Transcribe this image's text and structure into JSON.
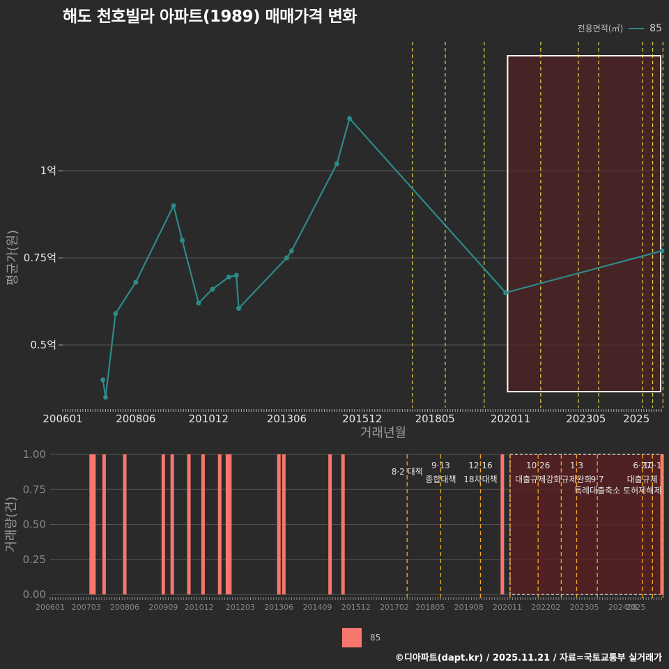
{
  "title": "해도 천호빌라 아파트(1989) 매매가격 변화",
  "legend": {
    "title": "전용면적(㎡)",
    "series_name": "85",
    "line_color": "#2e8a8a",
    "bar_color": "#f8766d"
  },
  "footer": "©디아파트(dapt.kr) / 2025.11.21 / 자료=국토교통부 실거래가",
  "chart_data": [
    {
      "type": "line",
      "title": "해도 천호빌라 아파트(1989) 매매가격 변화",
      "xlabel": "거래년월",
      "ylabel": "평균가(원)",
      "x_range": [
        2006.0,
        2025.85
      ],
      "ylim": [
        0.32,
        1.38
      ],
      "y_ticks": [
        0.5,
        0.75,
        1.0
      ],
      "y_tick_labels": [
        "0.5억",
        "0.75억",
        "1억"
      ],
      "x_ticks": [
        2006.0,
        2008.42,
        2010.83,
        2013.42,
        2015.92,
        2018.33,
        2020.83,
        2023.33,
        2025.0
      ],
      "x_tick_labels": [
        "200601",
        "200806",
        "201012",
        "201306",
        "201512",
        "201805",
        "202011",
        "202305",
        "2025"
      ],
      "series": [
        {
          "name": "85",
          "x": [
            2007.33,
            2007.42,
            2007.75,
            2008.42,
            2009.67,
            2009.96,
            2010.5,
            2010.96,
            2011.5,
            2011.75,
            2011.83,
            2013.42,
            2013.58,
            2015.08,
            2015.5,
            2020.67,
            2025.85
          ],
          "y": [
            0.4,
            0.35,
            0.59,
            0.68,
            0.9,
            0.8,
            0.62,
            0.66,
            0.695,
            0.7,
            0.605,
            0.75,
            0.77,
            1.02,
            1.15,
            0.65,
            0.77
          ]
        }
      ],
      "event_lines": [
        2017.58,
        2018.67,
        2019.96,
        2021.83,
        2023.08,
        2023.75,
        2025.21,
        2025.54,
        2025.88
      ],
      "event_line_colors": [
        "#e6d84a",
        "#e6d84a",
        "#e6d84a",
        "#e6d84a",
        "#e6d84a",
        "#e6d84a",
        "#e6d84a",
        "#e6d84a",
        "#e6d84a"
      ],
      "highlight_range": [
        2020.92,
        2025.85
      ]
    },
    {
      "type": "bar",
      "ylabel": "거래량(건)",
      "x_range": [
        2006.0,
        2025.85
      ],
      "ylim": [
        0,
        1.0
      ],
      "y_ticks": [
        0.0,
        0.25,
        0.5,
        0.75,
        1.0
      ],
      "y_tick_labels": [
        "0.00",
        "0.25",
        "0.50",
        "0.75",
        "1.00"
      ],
      "x_ticks": [
        2006.0,
        2007.17,
        2008.42,
        2009.67,
        2010.83,
        2012.17,
        2013.42,
        2014.67,
        2015.92,
        2017.17,
        2018.33,
        2019.58,
        2020.83,
        2022.08,
        2023.33,
        2024.58,
        2025.0
      ],
      "x_tick_labels": [
        "200601",
        "200703",
        "200806",
        "200909",
        "201012",
        "201203",
        "201306",
        "201409",
        "201512",
        "201702",
        "201805",
        "201908",
        "202011",
        "202202",
        "202305",
        "202408",
        "2025"
      ],
      "bars": [
        2007.33,
        2007.42,
        2007.75,
        2008.42,
        2009.67,
        2009.96,
        2010.5,
        2010.96,
        2011.5,
        2011.75,
        2011.83,
        2013.42,
        2013.58,
        2015.08,
        2015.5,
        2020.67,
        2025.85
      ],
      "bar_values": [
        1,
        1,
        1,
        1,
        1,
        1,
        1,
        1,
        1,
        1,
        1,
        1,
        1,
        1,
        1,
        1,
        1
      ],
      "event_lines": [
        2017.58,
        2018.67,
        2019.96,
        2020.92,
        2021.83,
        2022.58,
        2023.08,
        2023.75,
        2025.21,
        2025.54,
        2025.88
      ],
      "event_line_colors": [
        "#f5a623",
        "#f5a623",
        "#f5a623",
        "#f5a623",
        "#f5a623",
        "#f5a623",
        "#f5a623",
        "#f5a623",
        "#f5a623",
        "#f5a623",
        "#f5a623"
      ],
      "highlight_range": [
        2020.92,
        2025.85
      ],
      "annotations": [
        {
          "x": 2017.58,
          "text": "8·2 대책",
          "row": 1
        },
        {
          "x": 2018.67,
          "text": "9·13",
          "row": 0
        },
        {
          "x": 2018.67,
          "text": "종합대책",
          "row": 2
        },
        {
          "x": 2019.96,
          "text": "12·16",
          "row": 0
        },
        {
          "x": 2019.96,
          "text": "18차대책",
          "row": 2
        },
        {
          "x": 2021.83,
          "text": "10·26",
          "row": 0
        },
        {
          "x": 2021.83,
          "text": "대출규제강화",
          "row": 2
        },
        {
          "x": 2023.08,
          "text": "1·3",
          "row": 0
        },
        {
          "x": 2023.08,
          "text": "규제완화",
          "row": 2
        },
        {
          "x": 2023.75,
          "text": "9·7",
          "row": 2
        },
        {
          "x": 2023.75,
          "text": "특례대출축소",
          "row": 3
        },
        {
          "x": 2025.21,
          "text": "6·27",
          "row": 0
        },
        {
          "x": 2025.21,
          "text": "대출규제",
          "row": 2
        },
        {
          "x": 2025.54,
          "text": "10·1",
          "row": 0
        },
        {
          "x": 2025.21,
          "text": "토허제해제",
          "row": 3
        }
      ]
    }
  ]
}
